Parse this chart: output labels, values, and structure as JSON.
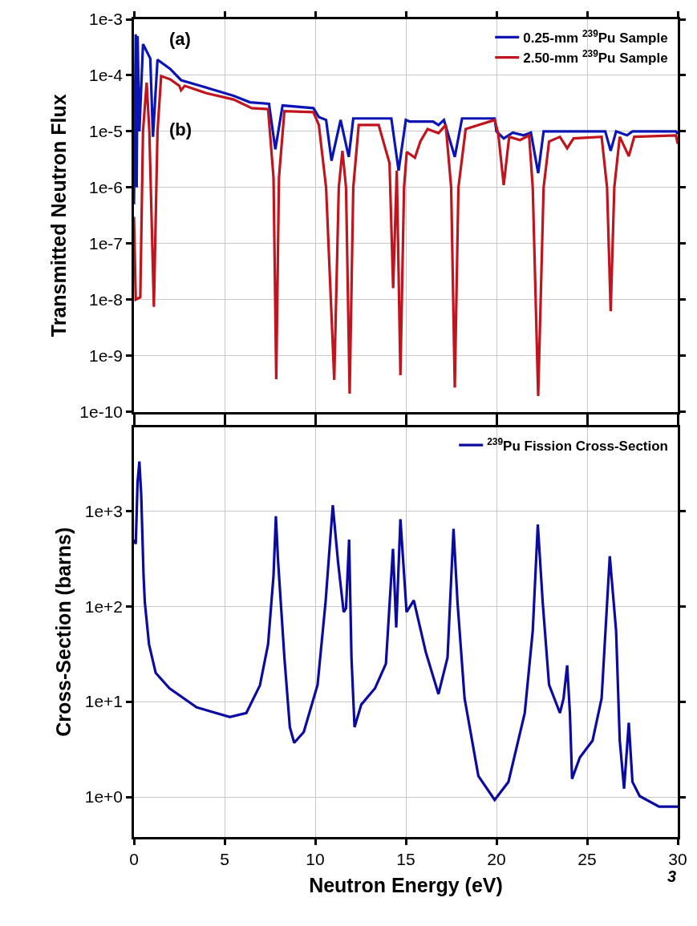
{
  "chart_data": [
    {
      "type": "line",
      "ylabel": "Transmitted Neutron Flux",
      "log": "y",
      "grid": true,
      "legend": "top right",
      "tick_labels": "y",
      "line_style": "solid",
      "marker": "none",
      "xlim": [
        0,
        30
      ],
      "xticks": [
        {
          "value": 0,
          "label": null
        },
        {
          "value": 5,
          "label": null
        },
        {
          "value": 10,
          "label": null
        },
        {
          "value": 15,
          "label": null
        },
        {
          "value": 20,
          "label": null
        },
        {
          "value": 25,
          "label": null
        },
        {
          "value": 30,
          "label": null
        }
      ],
      "ylim": [
        1e-10,
        0.001
      ],
      "yticks": [
        {
          "value": 1e-10,
          "label": "1e-10"
        },
        {
          "value": 1e-09,
          "label": "1e-9"
        },
        {
          "value": 1e-08,
          "label": "1e-8"
        },
        {
          "value": 1e-07,
          "label": "1e-7"
        },
        {
          "value": 1e-06,
          "label": "1e-6"
        },
        {
          "value": 1e-05,
          "label": "1e-5"
        },
        {
          "value": 0.0001,
          "label": "1e-4"
        },
        {
          "value": 0.001,
          "label": "1e-3"
        }
      ],
      "annotations": [
        "(a)",
        "(b)"
      ],
      "series": [
        {
          "name": "0.25-mm $^{239}$Pu Sample",
          "color": "#0c14b4",
          "x": [
            0.0,
            0.1,
            0.15,
            0.2,
            0.3,
            0.5,
            0.9,
            1.05,
            1.3,
            2.0,
            2.6,
            4.1,
            5.5,
            6.4,
            7.45,
            7.8,
            8.2,
            9.9,
            10.2,
            10.6,
            10.9,
            11.4,
            11.85,
            12.1,
            14.2,
            14.6,
            15.0,
            15.2,
            16.5,
            16.8,
            17.1,
            17.7,
            18.1,
            19.9,
            20.0,
            20.4,
            20.9,
            21.5,
            21.9,
            22.3,
            22.6,
            26.0,
            26.3,
            26.6,
            27.2,
            27.5,
            29.9,
            30.0
          ],
          "values": [
            5e-07,
            0.00054,
            1e-06,
            0.0005,
            1e-05,
            0.00036,
            0.0002,
            8e-06,
            0.00019,
            0.00013,
            8.2e-05,
            5.9e-05,
            4.3e-05,
            3.3e-05,
            3.1e-05,
            4.8e-06,
            2.9e-05,
            2.6e-05,
            1.8e-05,
            1.6e-05,
            3e-06,
            1.6e-05,
            3.5e-06,
            1.7e-05,
            1.7e-05,
            2e-06,
            1.6e-05,
            1.5e-05,
            1.5e-05,
            1.3e-05,
            1.6e-05,
            3.5e-06,
            1.7e-05,
            1.7e-05,
            1e-05,
            7.5e-06,
            9.5e-06,
            8.5e-06,
            9.5e-06,
            1.8e-06,
            1e-05,
            1e-05,
            4.5e-06,
            1e-05,
            8.5e-06,
            1e-05,
            1e-05,
            9e-06
          ]
        },
        {
          "name": "2.50-mm $^{239}$Pu Sample",
          "color": "#c0141e",
          "x": [
            0.0,
            0.1,
            0.35,
            0.5,
            0.7,
            0.85,
            1.1,
            1.3,
            1.5,
            2.0,
            2.5,
            2.6,
            2.8,
            4.0,
            5.5,
            6.5,
            7.4,
            7.7,
            7.85,
            8.0,
            8.3,
            9.9,
            10.2,
            10.6,
            11.05,
            11.3,
            11.5,
            11.7,
            11.9,
            12.1,
            12.4,
            13.5,
            14.1,
            14.3,
            14.5,
            14.7,
            14.9,
            15.05,
            15.5,
            15.8,
            16.2,
            16.8,
            17.2,
            17.5,
            17.7,
            17.9,
            18.3,
            19.9,
            20.1,
            20.4,
            20.7,
            21.3,
            21.8,
            22.0,
            22.3,
            22.6,
            22.9,
            23.5,
            23.9,
            24.25,
            25.8,
            26.1,
            26.3,
            26.5,
            26.8,
            27.3,
            27.6,
            29.9,
            30.0
          ],
          "values": [
            3e-07,
            1e-08,
            1.1e-08,
            1e-05,
            7.4e-05,
            1e-05,
            7.4e-09,
            1e-05,
            9.7e-05,
            8.5e-05,
            6.5e-05,
            5.4e-05,
            6.5e-05,
            4.8e-05,
            3.7e-05,
            2.6e-05,
            2.5e-05,
            1.5e-06,
            3.8e-10,
            1.5e-06,
            2.3e-05,
            2.2e-05,
            1.3e-05,
            1e-06,
            3.7e-10,
            1e-06,
            4.5e-06,
            1e-06,
            2.1e-10,
            1e-06,
            1.3e-05,
            1.3e-05,
            2.7e-06,
            1.6e-08,
            2e-06,
            4.5e-10,
            1e-06,
            4.3e-06,
            3.4e-06,
            6.6e-06,
            1.1e-05,
            9.3e-06,
            1.3e-05,
            1e-06,
            2.7e-10,
            1e-06,
            1.1e-05,
            1.6e-05,
            9e-06,
            1.1e-06,
            8e-06,
            7e-06,
            8.5e-06,
            1e-06,
            1.9e-10,
            1e-06,
            6.6e-06,
            8e-06,
            5e-06,
            7.5e-06,
            8e-06,
            1e-06,
            6.2e-09,
            1e-06,
            8e-06,
            3.6e-06,
            8e-06,
            8.5e-06,
            6e-06
          ]
        }
      ]
    },
    {
      "type": "line",
      "xlabel": "Neutron Energy (eV)",
      "ylabel": "Cross-Section (barns)",
      "log": "y",
      "grid": true,
      "legend": "top right",
      "line_style": "solid",
      "marker": "none",
      "xlim": [
        0,
        30
      ],
      "xticks": [
        0,
        5,
        10,
        15,
        20,
        25,
        30
      ],
      "ylim": [
        0.38,
        7600
      ],
      "yticks": [
        {
          "value": 1,
          "label": "1e+0"
        },
        {
          "value": 10,
          "label": "1e+1"
        },
        {
          "value": 100,
          "label": "1e+2"
        },
        {
          "value": 1000,
          "label": "1e+3"
        }
      ],
      "annotations": [
        "3"
      ],
      "series": [
        {
          "name": "$^{239}$Pu Fission Cross-Section",
          "color": "#0b0ba0",
          "x": [
            0.0,
            0.1,
            0.2,
            0.3,
            0.4,
            0.53,
            0.6,
            0.83,
            1.2,
            1.96,
            3.46,
            5.29,
            6.2,
            6.95,
            7.4,
            7.7,
            7.83,
            7.95,
            8.3,
            8.6,
            8.84,
            9.37,
            10.13,
            10.57,
            10.97,
            11.26,
            11.57,
            11.7,
            11.87,
            12.0,
            12.17,
            12.54,
            13.3,
            13.9,
            14.29,
            14.47,
            14.7,
            15.04,
            15.44,
            16.1,
            16.8,
            17.3,
            17.63,
            17.85,
            18.24,
            19.0,
            19.9,
            20.66,
            21.56,
            22.0,
            22.28,
            22.55,
            22.9,
            23.5,
            23.7,
            23.9,
            24.05,
            24.17,
            24.6,
            25.3,
            25.8,
            26.25,
            26.6,
            26.8,
            27.04,
            27.3,
            27.5,
            27.9,
            28.97,
            30.0
          ],
          "values": [
            500,
            450,
            2000,
            3300,
            1500,
            210,
            110,
            40,
            20,
            13.8,
            8.7,
            6.9,
            7.6,
            14.8,
            40,
            210,
            880,
            300,
            29,
            5.4,
            3.7,
            4.8,
            15,
            110,
            1150,
            290,
            87,
            95,
            500,
            29,
            5.4,
            9.3,
            13.8,
            25,
            400,
            60,
            820,
            87,
            115,
            33,
            12,
            29,
            650,
            110,
            10.8,
            1.66,
            0.93,
            1.44,
            7.6,
            55,
            720,
            110,
            15,
            7.6,
            10.8,
            24,
            7.6,
            1.55,
            2.6,
            3.9,
            10.8,
            335,
            55,
            3.9,
            1.22,
            6.0,
            1.44,
            1.02,
            0.79,
            0.79
          ]
        }
      ]
    }
  ]
}
